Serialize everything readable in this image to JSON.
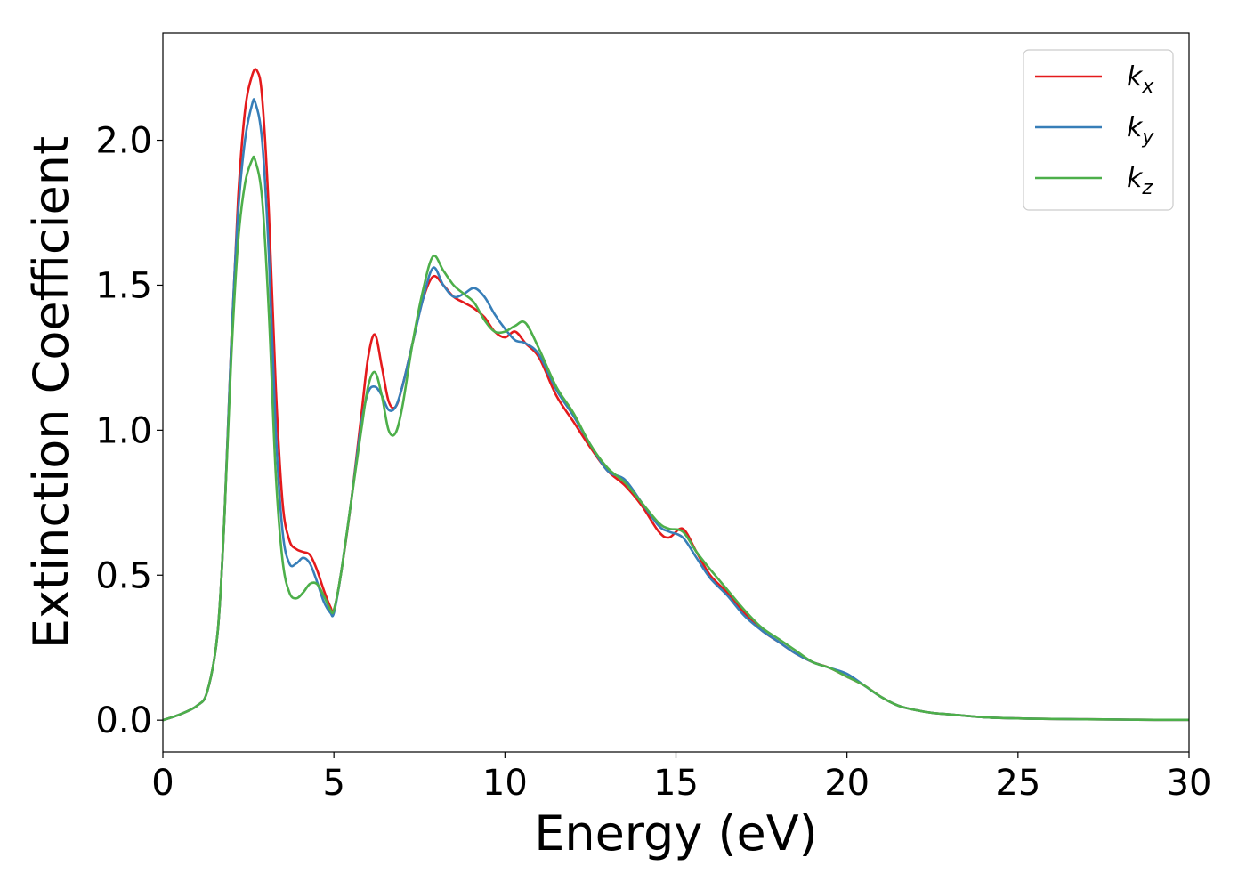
{
  "chart_data": {
    "type": "line",
    "xlabel": "Energy (eV)",
    "ylabel": "Extinction Coefficient",
    "xlim": [
      0,
      30
    ],
    "ylim": [
      -0.11,
      2.37
    ],
    "xticks": [
      0,
      5,
      10,
      15,
      20,
      25,
      30
    ],
    "xtick_labels": [
      "0",
      "5",
      "10",
      "15",
      "20",
      "25",
      "30"
    ],
    "yticks": [
      0.0,
      0.5,
      1.0,
      1.5,
      2.0
    ],
    "ytick_labels": [
      "0.0",
      "0.5",
      "1.0",
      "1.5",
      "2.0"
    ],
    "grid": false,
    "legend_position": "top-right",
    "series": [
      {
        "name": "k_x",
        "legend_base": "k",
        "legend_sub": "x",
        "color": "#e41a1c",
        "x": [
          0,
          0.5,
          1,
          1.3,
          1.6,
          1.8,
          2.0,
          2.2,
          2.4,
          2.6,
          2.75,
          2.9,
          3.1,
          3.3,
          3.5,
          3.7,
          3.9,
          4.1,
          4.3,
          4.5,
          4.7,
          4.9,
          5.0,
          5.2,
          5.5,
          5.8,
          6.0,
          6.2,
          6.4,
          6.6,
          6.8,
          7.0,
          7.3,
          7.6,
          7.9,
          8.2,
          8.5,
          8.8,
          9.1,
          9.4,
          9.7,
          10.0,
          10.3,
          10.6,
          11.0,
          11.5,
          12.0,
          12.5,
          13.0,
          13.5,
          14.0,
          14.5,
          14.8,
          15.2,
          15.6,
          16.0,
          16.5,
          17.0,
          17.5,
          18.0,
          18.5,
          19.0,
          19.5,
          20.0,
          20.5,
          21.0,
          21.5,
          22.0,
          22.5,
          23.0,
          24.0,
          25.0,
          26.0,
          27.0,
          28.0,
          29.0,
          30.0
        ],
        "y": [
          0.0,
          0.02,
          0.05,
          0.1,
          0.3,
          0.7,
          1.3,
          1.8,
          2.1,
          2.22,
          2.24,
          2.15,
          1.75,
          1.15,
          0.75,
          0.62,
          0.59,
          0.58,
          0.57,
          0.52,
          0.45,
          0.39,
          0.38,
          0.5,
          0.75,
          1.05,
          1.25,
          1.33,
          1.22,
          1.1,
          1.08,
          1.15,
          1.3,
          1.45,
          1.53,
          1.5,
          1.46,
          1.44,
          1.42,
          1.39,
          1.34,
          1.32,
          1.34,
          1.3,
          1.25,
          1.12,
          1.03,
          0.94,
          0.86,
          0.81,
          0.74,
          0.65,
          0.63,
          0.66,
          0.58,
          0.5,
          0.44,
          0.37,
          0.31,
          0.27,
          0.23,
          0.2,
          0.18,
          0.15,
          0.12,
          0.08,
          0.05,
          0.035,
          0.025,
          0.02,
          0.01,
          0.006,
          0.004,
          0.003,
          0.002,
          0.001,
          0.001
        ]
      },
      {
        "name": "k_y",
        "legend_base": "k",
        "legend_sub": "y",
        "color": "#377eb8",
        "x": [
          0,
          0.5,
          1,
          1.3,
          1.6,
          1.8,
          2.0,
          2.2,
          2.4,
          2.6,
          2.7,
          2.9,
          3.1,
          3.3,
          3.5,
          3.7,
          3.9,
          4.1,
          4.3,
          4.5,
          4.7,
          4.9,
          5.0,
          5.2,
          5.5,
          5.8,
          6.0,
          6.2,
          6.4,
          6.6,
          6.8,
          7.0,
          7.3,
          7.6,
          7.9,
          8.2,
          8.5,
          8.8,
          9.1,
          9.4,
          9.7,
          10.0,
          10.3,
          10.6,
          11.0,
          11.5,
          12.0,
          12.5,
          13.0,
          13.5,
          14.0,
          14.5,
          14.8,
          15.2,
          15.6,
          16.0,
          16.5,
          17.0,
          17.5,
          18.0,
          18.5,
          19.0,
          19.5,
          20.0,
          20.5,
          21.0,
          21.5,
          22.0,
          22.5,
          23.0,
          24.0,
          25.0,
          26.0,
          27.0,
          28.0,
          29.0,
          30.0
        ],
        "y": [
          0.0,
          0.02,
          0.05,
          0.1,
          0.3,
          0.7,
          1.3,
          1.75,
          2.0,
          2.12,
          2.13,
          2.0,
          1.6,
          1.0,
          0.65,
          0.54,
          0.54,
          0.56,
          0.54,
          0.48,
          0.41,
          0.37,
          0.37,
          0.5,
          0.75,
          1.02,
          1.13,
          1.15,
          1.12,
          1.07,
          1.08,
          1.15,
          1.3,
          1.45,
          1.56,
          1.5,
          1.46,
          1.47,
          1.49,
          1.46,
          1.4,
          1.35,
          1.31,
          1.3,
          1.26,
          1.14,
          1.05,
          0.95,
          0.86,
          0.83,
          0.75,
          0.67,
          0.65,
          0.63,
          0.56,
          0.49,
          0.43,
          0.36,
          0.31,
          0.27,
          0.23,
          0.2,
          0.18,
          0.16,
          0.12,
          0.08,
          0.05,
          0.035,
          0.025,
          0.02,
          0.01,
          0.006,
          0.004,
          0.003,
          0.002,
          0.001,
          0.001
        ]
      },
      {
        "name": "k_z",
        "legend_base": "k",
        "legend_sub": "z",
        "color": "#4daf4a",
        "x": [
          0,
          0.5,
          1,
          1.3,
          1.6,
          1.8,
          2.0,
          2.2,
          2.4,
          2.6,
          2.7,
          2.9,
          3.1,
          3.3,
          3.5,
          3.7,
          3.9,
          4.1,
          4.3,
          4.5,
          4.7,
          4.9,
          5.0,
          5.2,
          5.5,
          5.8,
          6.0,
          6.2,
          6.4,
          6.6,
          6.8,
          7.0,
          7.3,
          7.6,
          7.9,
          8.2,
          8.5,
          8.8,
          9.1,
          9.4,
          9.7,
          10.0,
          10.3,
          10.6,
          11.0,
          11.5,
          12.0,
          12.5,
          13.0,
          13.5,
          14.0,
          14.5,
          14.8,
          15.2,
          15.6,
          16.0,
          16.5,
          17.0,
          17.5,
          18.0,
          18.5,
          19.0,
          19.5,
          20.0,
          20.5,
          21.0,
          21.5,
          22.0,
          22.5,
          23.0,
          24.0,
          25.0,
          26.0,
          27.0,
          28.0,
          29.0,
          30.0
        ],
        "y": [
          0.0,
          0.02,
          0.05,
          0.1,
          0.3,
          0.7,
          1.25,
          1.65,
          1.85,
          1.93,
          1.93,
          1.8,
          1.4,
          0.85,
          0.55,
          0.44,
          0.42,
          0.44,
          0.47,
          0.47,
          0.43,
          0.38,
          0.38,
          0.5,
          0.75,
          1.0,
          1.15,
          1.2,
          1.12,
          1.0,
          0.99,
          1.08,
          1.3,
          1.48,
          1.6,
          1.55,
          1.5,
          1.47,
          1.44,
          1.38,
          1.34,
          1.34,
          1.36,
          1.37,
          1.28,
          1.15,
          1.06,
          0.95,
          0.87,
          0.82,
          0.75,
          0.68,
          0.66,
          0.65,
          0.58,
          0.52,
          0.45,
          0.38,
          0.32,
          0.28,
          0.24,
          0.2,
          0.18,
          0.15,
          0.12,
          0.08,
          0.05,
          0.035,
          0.025,
          0.02,
          0.01,
          0.006,
          0.004,
          0.003,
          0.002,
          0.001,
          0.001
        ]
      }
    ]
  }
}
